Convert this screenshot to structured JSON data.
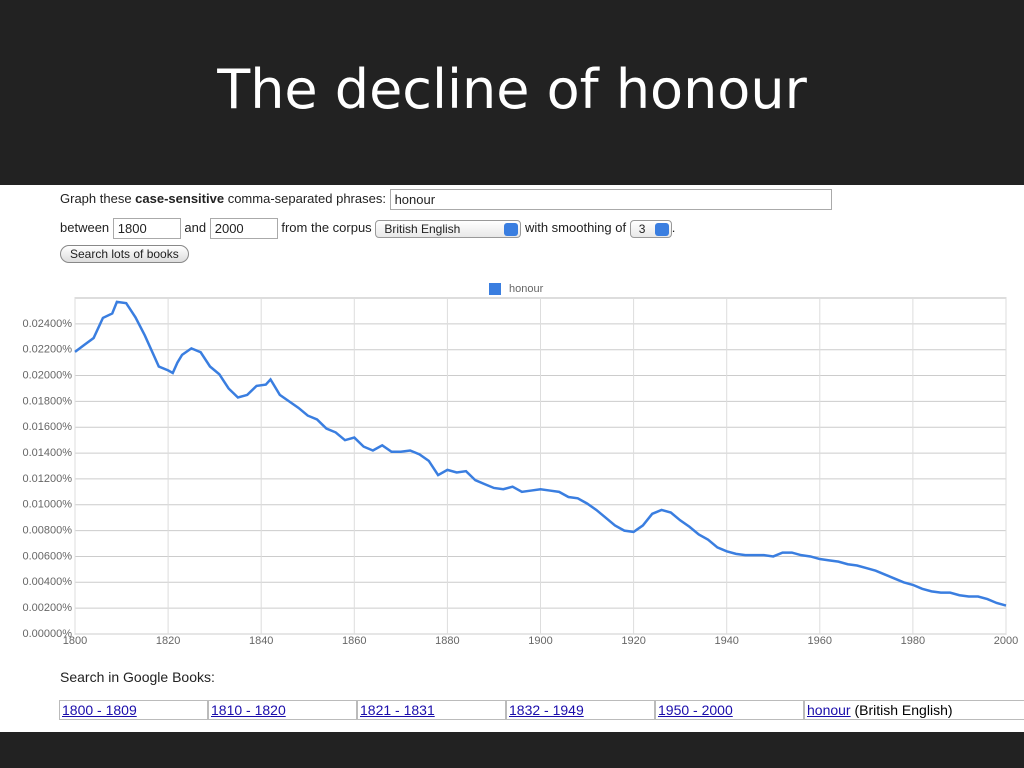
{
  "slide": {
    "title": "The decline of honour"
  },
  "form": {
    "graph_these": "Graph these",
    "case_sensitive": "case-sensitive",
    "phrases_label": "comma-separated phrases:",
    "phrases": "honour",
    "between": "between",
    "start_year": "1800",
    "and": "and",
    "end_year": "2000",
    "from_corpus": "from the corpus",
    "corpus": "British English",
    "with_smoothing": "with smoothing of",
    "smoothing": "3",
    "end_mark": ".",
    "button": "Search lots of books"
  },
  "chart_data": {
    "type": "line",
    "x": [
      1800,
      1802,
      1804,
      1806,
      1808,
      1809,
      1811,
      1813,
      1815,
      1817,
      1818,
      1820,
      1821,
      1822,
      1823,
      1825,
      1827,
      1829,
      1831,
      1833,
      1835,
      1837,
      1839,
      1841,
      1842,
      1844,
      1846,
      1848,
      1850,
      1852,
      1854,
      1856,
      1858,
      1860,
      1862,
      1864,
      1866,
      1868,
      1870,
      1872,
      1874,
      1876,
      1878,
      1880,
      1882,
      1884,
      1886,
      1888,
      1890,
      1892,
      1894,
      1896,
      1898,
      1900,
      1902,
      1904,
      1906,
      1908,
      1910,
      1912,
      1914,
      1916,
      1918,
      1920,
      1922,
      1924,
      1926,
      1928,
      1930,
      1932,
      1934,
      1936,
      1938,
      1940,
      1942,
      1944,
      1946,
      1948,
      1950,
      1952,
      1954,
      1956,
      1958,
      1960,
      1962,
      1964,
      1966,
      1968,
      1970,
      1972,
      1974,
      1976,
      1978,
      1980,
      1982,
      1984,
      1986,
      1988,
      1990,
      1992,
      1994,
      1996,
      1998,
      2000
    ],
    "series": [
      {
        "name": "honour",
        "color": "#3a7ee0",
        "values": [
          0.02183,
          0.02237,
          0.0229,
          0.02446,
          0.0248,
          0.0257,
          0.0256,
          0.0245,
          0.0231,
          0.0215,
          0.0207,
          0.0204,
          0.0202,
          0.021,
          0.0216,
          0.0221,
          0.0218,
          0.0207,
          0.0201,
          0.019,
          0.0183,
          0.0185,
          0.0192,
          0.0193,
          0.0197,
          0.0185,
          0.018,
          0.0175,
          0.0169,
          0.0166,
          0.0159,
          0.0156,
          0.015,
          0.0152,
          0.0145,
          0.0142,
          0.0146,
          0.0141,
          0.0141,
          0.0142,
          0.0139,
          0.0134,
          0.0123,
          0.0127,
          0.0125,
          0.0126,
          0.0119,
          0.0116,
          0.0113,
          0.0112,
          0.0114,
          0.011,
          0.0111,
          0.0112,
          0.0111,
          0.011,
          0.0106,
          0.0105,
          0.0101,
          0.0096,
          0.009,
          0.0084,
          0.008,
          0.0079,
          0.0084,
          0.0093,
          0.0096,
          0.0094,
          0.0088,
          0.0083,
          0.0077,
          0.0073,
          0.0067,
          0.0064,
          0.0062,
          0.0061,
          0.0061,
          0.0061,
          0.006,
          0.0063,
          0.0063,
          0.0061,
          0.006,
          0.0058,
          0.0057,
          0.0056,
          0.0054,
          0.0053,
          0.0051,
          0.0049,
          0.0046,
          0.0043,
          0.004,
          0.0038,
          0.0035,
          0.0033,
          0.0032,
          0.0032,
          0.003,
          0.0029,
          0.0029,
          0.0027,
          0.0024,
          0.0022
        ]
      }
    ],
    "xlim": [
      1800,
      2000
    ],
    "xticks": [
      1800,
      1820,
      1840,
      1860,
      1880,
      1900,
      1920,
      1940,
      1960,
      1980,
      2000
    ],
    "ylim": [
      0,
      0.026
    ],
    "yticks": [
      {
        "value": 0,
        "label": "0.00000%"
      },
      {
        "value": 0.002,
        "label": "0.00200%"
      },
      {
        "value": 0.004,
        "label": "0.00400%"
      },
      {
        "value": 0.006,
        "label": "0.00600%"
      },
      {
        "value": 0.008,
        "label": "0.00800%"
      },
      {
        "value": 0.01,
        "label": "0.01000%"
      },
      {
        "value": 0.012,
        "label": "0.01200%"
      },
      {
        "value": 0.014,
        "label": "0.01400%"
      },
      {
        "value": 0.016,
        "label": "0.01600%"
      },
      {
        "value": 0.018,
        "label": "0.01800%"
      },
      {
        "value": 0.02,
        "label": "0.02000%"
      },
      {
        "value": 0.022,
        "label": "0.02200%"
      },
      {
        "value": 0.024,
        "label": "0.02400%"
      }
    ],
    "grid": true,
    "legend": "top"
  },
  "books": {
    "label": "Search in Google Books:",
    "links": [
      "1800 - 1809",
      "1810 - 1820",
      "1821 - 1831",
      "1832 - 1949",
      "1950 - 2000",
      "honour"
    ],
    "note": "(British English)"
  }
}
